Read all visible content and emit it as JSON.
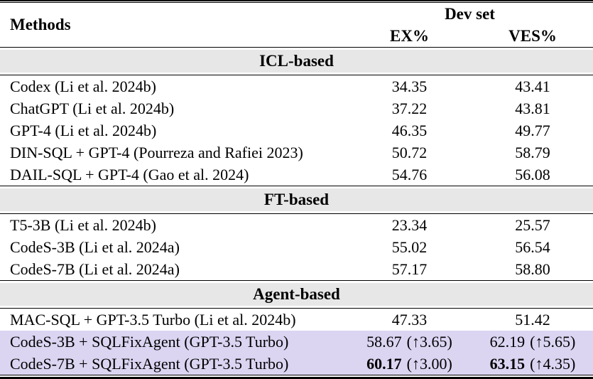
{
  "colors": {
    "section_band_bg": "#e7e7e7",
    "highlight_bg": "#dbd5f2",
    "rule_color": "#000000"
  },
  "table": {
    "header": {
      "methods_label": "Methods",
      "group_label": "Dev set",
      "ex_label": "EX%",
      "ves_label": "VES%"
    },
    "sections": [
      {
        "title": "ICL-based",
        "rows": [
          {
            "method": "Codex (Li et al. 2024b)",
            "ex": "34.35",
            "ves": "43.41"
          },
          {
            "method": "ChatGPT (Li et al. 2024b)",
            "ex": "37.22",
            "ves": "43.81"
          },
          {
            "method": "GPT-4 (Li et al. 2024b)",
            "ex": "46.35",
            "ves": "49.77"
          },
          {
            "method": "DIN-SQL + GPT-4 (Pourreza and Rafiei 2023)",
            "ex": "50.72",
            "ves": "58.79"
          },
          {
            "method": "DAIL-SQL + GPT-4 (Gao et al. 2024)",
            "ex": "54.76",
            "ves": "56.08"
          }
        ]
      },
      {
        "title": "FT-based",
        "rows": [
          {
            "method": "T5-3B (Li et al. 2024b)",
            "ex": "23.34",
            "ves": "25.57"
          },
          {
            "method": "CodeS-3B (Li et al. 2024a)",
            "ex": "55.02",
            "ves": "56.54"
          },
          {
            "method": "CodeS-7B (Li et al. 2024a)",
            "ex": "57.17",
            "ves": "58.80"
          }
        ]
      },
      {
        "title": "Agent-based",
        "rows": [
          {
            "method": "MAC-SQL + GPT-3.5 Turbo (Li et al. 2024b)",
            "ex": "47.33",
            "ves": "51.42"
          },
          {
            "method": "CodeS-3B + SQLFixAgent (GPT-3.5 Turbo)",
            "ex": "58.67",
            "ex_delta": "(↑3.65)",
            "ves": "62.19",
            "ves_delta": "(↑5.65)"
          },
          {
            "method": "CodeS-7B + SQLFixAgent (GPT-3.5 Turbo)",
            "ex": "60.17",
            "ex_delta": "(↑3.00)",
            "ves": "63.15",
            "ves_delta": "(↑4.35)"
          }
        ]
      }
    ]
  }
}
